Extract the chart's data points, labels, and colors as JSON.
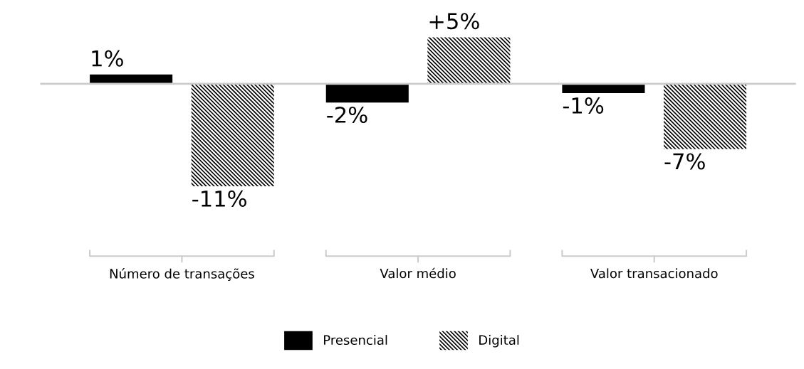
{
  "chart_data": {
    "type": "bar",
    "categories": [
      "Número de transações",
      "Valor médio",
      "Valor transacionado"
    ],
    "series": [
      {
        "name": "Presencial",
        "color": "#000000",
        "values": [
          1,
          -2,
          -1
        ],
        "value_labels": [
          "1%",
          "-2%",
          "-1%"
        ]
      },
      {
        "name": "Digital",
        "color": "#000000",
        "values": [
          -11,
          5,
          -7
        ],
        "value_labels": [
          "-11%",
          "+5%",
          "-7%"
        ]
      }
    ],
    "legend": "bottom"
  }
}
